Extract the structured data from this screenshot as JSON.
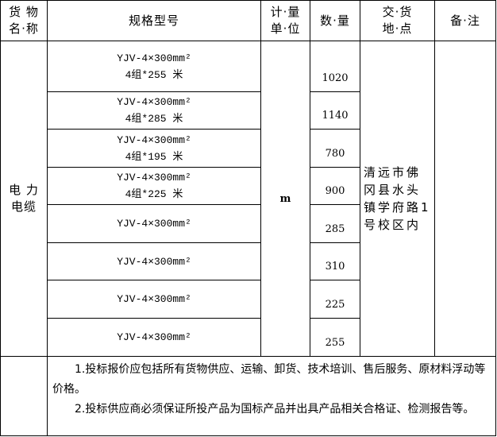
{
  "header": {
    "name": [
      "货 物",
      "名·称"
    ],
    "spec": "规格型号",
    "unit": [
      "计·量",
      "单·位"
    ],
    "qty": "数·量",
    "place": [
      "交·货",
      "地·点"
    ],
    "remark": "备·注"
  },
  "item": {
    "name": [
      "电 力",
      "电缆"
    ],
    "unit": "m",
    "place": "清远市佛冈县水头镇学府路1号校区内"
  },
  "rows": [
    {
      "spec": "YJV-4×300mm²",
      "sub": "4组*255 米",
      "qty": "1020"
    },
    {
      "spec": "YJV-4×300mm²",
      "sub": "4组*285 米",
      "qty": "1140"
    },
    {
      "spec": "YJV-4×300mm²",
      "sub": "4组*195 米",
      "qty": "780"
    },
    {
      "spec": "YJV-4×300mm²",
      "sub": "4组*225 米",
      "qty": "900"
    },
    {
      "spec": "YJV-4×300mm²",
      "sub": "",
      "qty": "285"
    },
    {
      "spec": "YJV-4×300mm²",
      "sub": "",
      "qty": "310"
    },
    {
      "spec": "YJV-4×300mm²",
      "sub": "",
      "qty": "225"
    },
    {
      "spec": "YJV-4×300mm²",
      "sub": "",
      "qty": "255"
    }
  ],
  "notes": [
    "1.投标报价应包括所有货物供应、运输、卸货、技术培训、售后服务、原材料浮动等价格。",
    "2.投标供应商必须保证所投产品为国标产品并出具产品相关合格证、检测报告等。"
  ]
}
